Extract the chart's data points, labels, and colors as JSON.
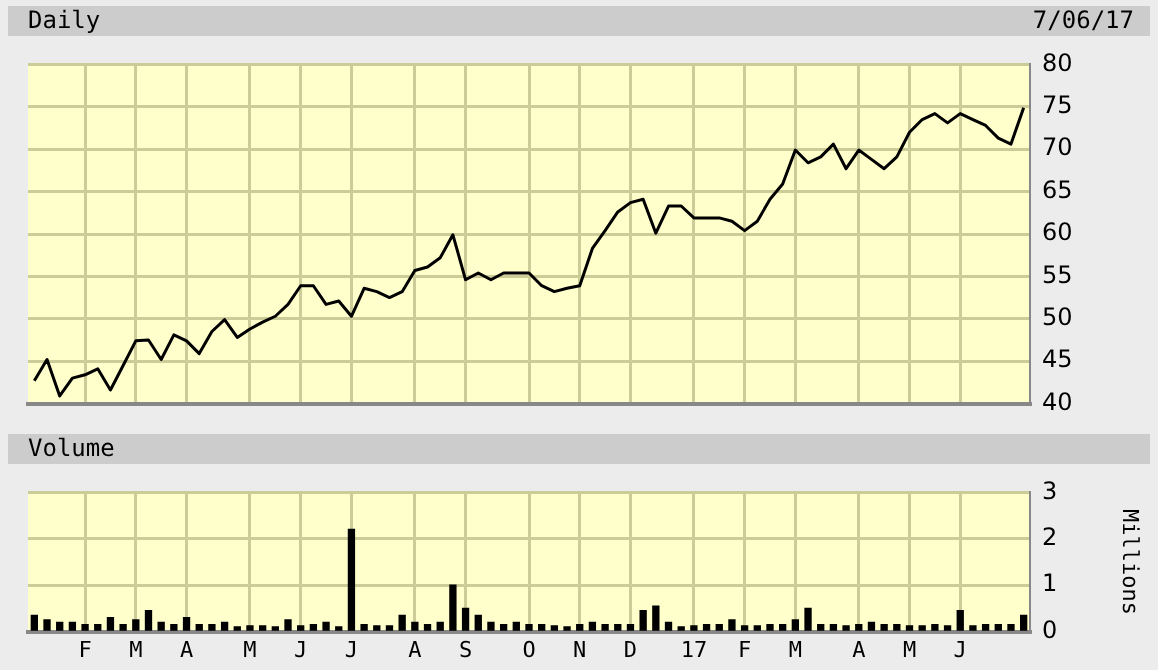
{
  "chart_data": [
    {
      "type": "line",
      "title": "Daily",
      "annotations": [
        "7/06/17"
      ],
      "grid": true,
      "tick_labels": "y",
      "categories": [
        null,
        null,
        null,
        null,
        null,
        null,
        null,
        null,
        null,
        null,
        null,
        null,
        null,
        null,
        null,
        null,
        null,
        null,
        null,
        null,
        null,
        null,
        null,
        null,
        null,
        null,
        null,
        null,
        null,
        null,
        null,
        null,
        null,
        null,
        null,
        null,
        null,
        null,
        null,
        null,
        null,
        null,
        null,
        null,
        null,
        null,
        null,
        null,
        null,
        null,
        null,
        null,
        null,
        null,
        null,
        null,
        null,
        null,
        null,
        null,
        null,
        null,
        null,
        null,
        null,
        null,
        null,
        null,
        null,
        null,
        null,
        null,
        null,
        null,
        null,
        null,
        null,
        null,
        null
      ],
      "ylim": [
        40,
        80
      ],
      "yticks": [
        40,
        45,
        50,
        55,
        60,
        65,
        70,
        75,
        80
      ],
      "series": [
        {
          "color": "#000000",
          "values": [
            42.7,
            45.2,
            40.9,
            43,
            43.4,
            44.1,
            41.6,
            44.5,
            47.4,
            47.5,
            45.2,
            48.1,
            47.4,
            45.9,
            48.5,
            49.9,
            47.8,
            48.8,
            49.6,
            50.3,
            51.7,
            53.9,
            53.9,
            51.7,
            52.1,
            50.3,
            53.6,
            53.2,
            52.5,
            53.2,
            55.7,
            56.1,
            57.2,
            59.9,
            54.6,
            55.4,
            54.6,
            55.4,
            55.4,
            55.4,
            53.9,
            53.2,
            53.6,
            53.9,
            58.3,
            60.4,
            62.6,
            63.7,
            64.1,
            60.1,
            63.3,
            63.3,
            61.9,
            61.9,
            61.9,
            61.5,
            60.4,
            61.5,
            64.1,
            65.9,
            69.9,
            68.4,
            69.1,
            70.6,
            67.7,
            69.9,
            68.8,
            67.7,
            69.1,
            72,
            73.5,
            74.2,
            73.1,
            74.2,
            73.5,
            72.8,
            71.3,
            70.6,
            74.9
          ]
        }
      ]
    },
    {
      "type": "bar",
      "title": "Volume",
      "ylabel": "Millions",
      "grid": true,
      "categories": [
        null,
        null,
        null,
        null,
        "F",
        null,
        null,
        null,
        "M",
        null,
        null,
        null,
        "A",
        null,
        null,
        null,
        null,
        "M",
        null,
        null,
        null,
        "J",
        null,
        null,
        null,
        "J",
        null,
        null,
        null,
        null,
        "A",
        null,
        null,
        null,
        "S",
        null,
        null,
        null,
        null,
        "O",
        null,
        null,
        null,
        "N",
        null,
        null,
        null,
        "D",
        null,
        null,
        null,
        null,
        "17",
        null,
        null,
        null,
        "F",
        null,
        null,
        null,
        "M",
        null,
        null,
        null,
        null,
        "A",
        null,
        null,
        null,
        "M",
        null,
        null,
        null,
        "J",
        null,
        null,
        null,
        null,
        null
      ],
      "ylim": [
        0,
        3
      ],
      "yticks": [
        0,
        1,
        2,
        3
      ],
      "series": [
        {
          "color": "#000000",
          "values": [
            0.35,
            0.25,
            0.2,
            0.2,
            0.15,
            0.15,
            0.3,
            0.15,
            0.25,
            0.45,
            0.2,
            0.15,
            0.3,
            0.15,
            0.15,
            0.2,
            0.1,
            0.12,
            0.12,
            0.1,
            0.25,
            0.12,
            0.15,
            0.2,
            0.1,
            2.2,
            0.15,
            0.12,
            0.12,
            0.35,
            0.2,
            0.15,
            0.2,
            1,
            0.5,
            0.35,
            0.2,
            0.15,
            0.2,
            0.15,
            0.15,
            0.12,
            0.1,
            0.15,
            0.2,
            0.15,
            0.15,
            0.15,
            0.45,
            0.55,
            0.2,
            0.1,
            0.12,
            0.15,
            0.15,
            0.25,
            0.12,
            0.12,
            0.15,
            0.15,
            0.25,
            0.5,
            0.15,
            0.15,
            0.12,
            0.15,
            0.2,
            0.15,
            0.15,
            0.12,
            0.12,
            0.15,
            0.12,
            0.45,
            0.12,
            0.15,
            0.15,
            0.15,
            0.35
          ]
        }
      ]
    }
  ]
}
